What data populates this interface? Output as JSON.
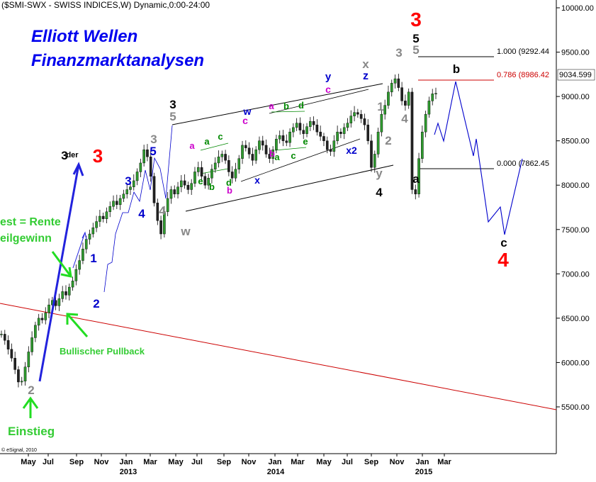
{
  "header": {
    "title": "($SMI-SWX - SWISS INDICES,W) Dynamic,0:00-24:00"
  },
  "branding": {
    "line1": "Elliott Wellen",
    "line2": "Finanzmarktanalysen"
  },
  "footer": {
    "credit": "© eSignal, 2010"
  },
  "chart_data": {
    "type": "candlestick",
    "title": "($SMI-SWX - SWISS INDICES,W) Dynamic,0:00-24:00",
    "y_axis": {
      "position": "right",
      "ticks": [
        {
          "value": 10000,
          "label": "10000.00"
        },
        {
          "value": 9500,
          "label": "9500.00"
        },
        {
          "value": 9000,
          "label": "9000.00"
        },
        {
          "value": 8500,
          "label": "8500.00"
        },
        {
          "value": 8000,
          "label": "8000.00"
        },
        {
          "value": 7500,
          "label": "7500.00"
        },
        {
          "value": 7000,
          "label": "7000.00"
        },
        {
          "value": 6500,
          "label": "6500.00"
        },
        {
          "value": 6000,
          "label": "6000.00"
        },
        {
          "value": 5500,
          "label": "5500.00"
        }
      ],
      "last_price_label": "9034.599",
      "last_price": 9034.599
    },
    "x_axis": {
      "months": [
        "May",
        "Jul",
        "Sep",
        "Nov",
        "Jan",
        "Mar",
        "May",
        "Jul",
        "Sep",
        "Nov",
        "Jan",
        "Mar",
        "May",
        "Jul",
        "Sep",
        "Nov",
        "Jan",
        "Mar"
      ],
      "years": [
        "2013",
        "2014",
        "2015"
      ]
    },
    "fib_levels": [
      {
        "label": "1.000 (9292.44",
        "value": 9292.44,
        "color": "#000000"
      },
      {
        "label": "0.786 (8986.42",
        "value": 8986.42,
        "color": "#cc0000"
      },
      {
        "label": "0.000 (7862.45",
        "value": 7862.45,
        "color": "#000000"
      }
    ],
    "weekly_closes": [
      6320,
      6250,
      6150,
      6050,
      5920,
      5780,
      5790,
      5950,
      6120,
      6280,
      6420,
      6500,
      6480,
      6560,
      6650,
      6700,
      6640,
      6720,
      6800,
      6760,
      6850,
      6920,
      7050,
      7150,
      7280,
      7390,
      7450,
      7520,
      7590,
      7650,
      7620,
      7700,
      7760,
      7820,
      7780,
      7850,
      7900,
      7950,
      7980,
      8050,
      8150,
      8250,
      8400,
      8320,
      8100,
      7800,
      7600,
      7450,
      7700,
      7850,
      7950,
      7900,
      7980,
      8050,
      8000,
      7950,
      8020,
      8150,
      8200,
      8100,
      8000,
      8080,
      8180,
      8250,
      8320,
      8350,
      8280,
      8150,
      8080,
      8180,
      8300,
      8450,
      8420,
      8350,
      8280,
      8400,
      8500,
      8450,
      8350,
      8300,
      8400,
      8520,
      8560,
      8500,
      8480,
      8600,
      8650,
      8700,
      8620,
      8580,
      8660,
      8720,
      8680,
      8600,
      8550,
      8500,
      8400,
      8380,
      8500,
      8600,
      8580,
      8650,
      8700,
      8780,
      8820,
      8800,
      8750,
      8680,
      8500,
      8200,
      8350,
      8600,
      8800,
      8900,
      9050,
      9150,
      9200,
      9100,
      8950,
      8900,
      9050,
      7950,
      7900,
      8300,
      8600,
      8800,
      8950,
      9030,
      9034.599
    ],
    "labels": [
      {
        "text": "3",
        "color": "#ff0000",
        "size": "large"
      },
      {
        "text": "5",
        "color": "#000000"
      },
      {
        "text": "5",
        "color": "#888888"
      },
      {
        "text": "3",
        "color": "#888888"
      },
      {
        "text": "b",
        "color": "#000000"
      },
      {
        "text": "a",
        "color": "#000000"
      },
      {
        "text": "c",
        "color": "#000000"
      },
      {
        "text": "4",
        "color": "#ff0000",
        "size": "large"
      },
      {
        "text": "4",
        "color": "#888888"
      },
      {
        "text": "2",
        "color": "#888888"
      },
      {
        "text": "1",
        "color": "#888888"
      },
      {
        "text": "x",
        "color": "#888888"
      },
      {
        "text": "z",
        "color": "#0000cc"
      },
      {
        "text": "y",
        "color": "#0000cc"
      },
      {
        "text": "c",
        "color": "#cc00cc"
      },
      {
        "text": "y",
        "color": "#888888"
      },
      {
        "text": "4",
        "color": "#000000"
      },
      {
        "text": "x2",
        "color": "#0000cc"
      },
      {
        "text": "3",
        "color": "#000000"
      },
      {
        "text": "5",
        "color": "#888888"
      },
      {
        "text": "w",
        "color": "#888888"
      },
      {
        "text": "w",
        "color": "#0000cc"
      },
      {
        "text": "c",
        "color": "#cc00cc"
      },
      {
        "text": "x",
        "color": "#0000cc"
      },
      {
        "text": "a",
        "color": "#cc00cc"
      },
      {
        "text": "b",
        "color": "#cc00cc"
      },
      {
        "text": "a",
        "color": "#cc00cc"
      },
      {
        "text": "b",
        "color": "#cc00cc"
      },
      {
        "text": "b",
        "color": "#008800"
      },
      {
        "text": "d",
        "color": "#008800"
      },
      {
        "text": "a",
        "color": "#008800"
      },
      {
        "text": "c",
        "color": "#008800"
      },
      {
        "text": "e",
        "color": "#008800"
      },
      {
        "text": "b",
        "color": "#008800"
      },
      {
        "text": "d",
        "color": "#008800"
      },
      {
        "text": "a",
        "color": "#008800"
      },
      {
        "text": "c",
        "color": "#008800"
      },
      {
        "text": "e",
        "color": "#008800"
      },
      {
        "text": "3",
        "color": "#888888"
      },
      {
        "text": "5",
        "color": "#0000cc"
      },
      {
        "text": "3",
        "color": "#0000cc"
      },
      {
        "text": "4",
        "color": "#0000cc"
      },
      {
        "text": "4",
        "color": "#888888"
      },
      {
        "text": "1",
        "color": "#0000cc"
      },
      {
        "text": "2",
        "color": "#0000cc"
      },
      {
        "text": "2",
        "color": "#888888"
      },
      {
        "text": "3",
        "color": "#000000"
      },
      {
        "text": "der",
        "color": "#000000"
      },
      {
        "text": "3",
        "color": "#ff0000"
      }
    ],
    "annotations": [
      {
        "text": "est = Rente",
        "color": "#33cc33"
      },
      {
        "text": "eilgewinn",
        "color": "#33cc33"
      },
      {
        "text": "Bullischer Pullback",
        "color": "#33cc33"
      },
      {
        "text": "Einstieg",
        "color": "#33cc33"
      }
    ]
  }
}
